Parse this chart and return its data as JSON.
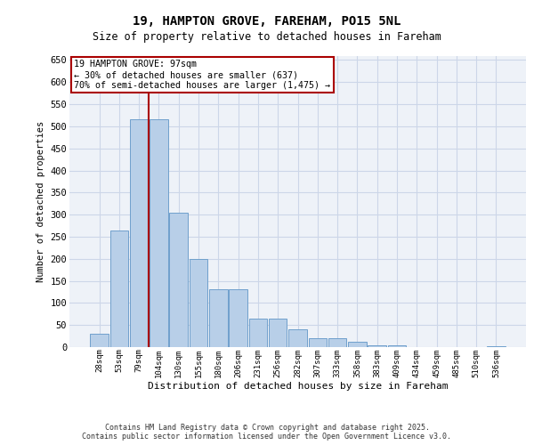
{
  "title_line1": "19, HAMPTON GROVE, FAREHAM, PO15 5NL",
  "title_line2": "Size of property relative to detached houses in Fareham",
  "xlabel": "Distribution of detached houses by size in Fareham",
  "ylabel": "Number of detached properties",
  "categories": [
    "28sqm",
    "53sqm",
    "79sqm",
    "104sqm",
    "130sqm",
    "155sqm",
    "180sqm",
    "206sqm",
    "231sqm",
    "256sqm",
    "282sqm",
    "307sqm",
    "333sqm",
    "358sqm",
    "383sqm",
    "409sqm",
    "434sqm",
    "459sqm",
    "485sqm",
    "510sqm",
    "536sqm"
  ],
  "values": [
    30,
    265,
    515,
    515,
    305,
    200,
    130,
    130,
    65,
    65,
    40,
    20,
    20,
    13,
    5,
    5,
    1,
    1,
    0,
    0,
    2
  ],
  "bar_color": "#b8cfe8",
  "bar_edge_color": "#6fa0cc",
  "bg_color": "#eef2f8",
  "grid_color": "#ccd6e8",
  "vline_color": "#aa0000",
  "vline_x": 2.5,
  "annotation_text": "19 HAMPTON GROVE: 97sqm\n← 30% of detached houses are smaller (637)\n70% of semi-detached houses are larger (1,475) →",
  "annotation_facecolor": "#ffffff",
  "annotation_edgecolor": "#aa0000",
  "ylim": [
    0,
    660
  ],
  "yticks": [
    0,
    50,
    100,
    150,
    200,
    250,
    300,
    350,
    400,
    450,
    500,
    550,
    600,
    650
  ],
  "footer": "Contains HM Land Registry data © Crown copyright and database right 2025.\nContains public sector information licensed under the Open Government Licence v3.0."
}
